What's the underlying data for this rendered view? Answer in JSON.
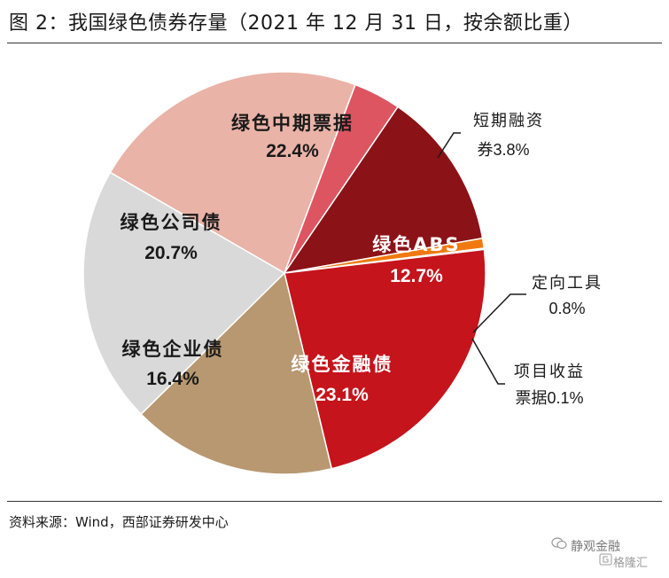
{
  "header": {
    "title": "图 2：我国绿色债券存量（2021 年 12 月 31 日，按余额比重）"
  },
  "footer": {
    "source": "资料来源：Wind，西部证券研发中心"
  },
  "watermark": {
    "brand": "静观金融",
    "brand2": "格隆汇"
  },
  "chart_data": {
    "type": "pie",
    "title": "",
    "slices": [
      {
        "label": "绿色中期票据",
        "value_label": "22.4%",
        "value": 22.4,
        "color": "#eab3a7",
        "text_color": "#1a1a1a"
      },
      {
        "label": "短期融资券",
        "value_label": "3.8%",
        "value": 3.8,
        "color": "#dd5561",
        "text_color": "#1a1a1a"
      },
      {
        "label": "绿色ABS",
        "value_label": "12.7%",
        "value": 12.7,
        "color": "#8b1216",
        "text_color": "#ffffff"
      },
      {
        "label": "定向工具",
        "value_label": "0.8%",
        "value": 0.8,
        "color": "#f07a10",
        "text_color": "#1a1a1a"
      },
      {
        "label": "项目收益票据",
        "value_label": "0.1%",
        "value": 0.1,
        "color": "#f5c400",
        "text_color": "#1a1a1a"
      },
      {
        "label": "绿色金融债",
        "value_label": "23.1%",
        "value": 23.1,
        "color": "#c5141b",
        "text_color": "#ffffff"
      },
      {
        "label": "绿色企业债",
        "value_label": "16.4%",
        "value": 16.4,
        "color": "#b89871",
        "text_color": "#1a1a1a"
      },
      {
        "label": "绿色公司债",
        "value_label": "20.7%",
        "value": 20.7,
        "color": "#d9d9d9",
        "text_color": "#1a1a1a"
      }
    ]
  }
}
